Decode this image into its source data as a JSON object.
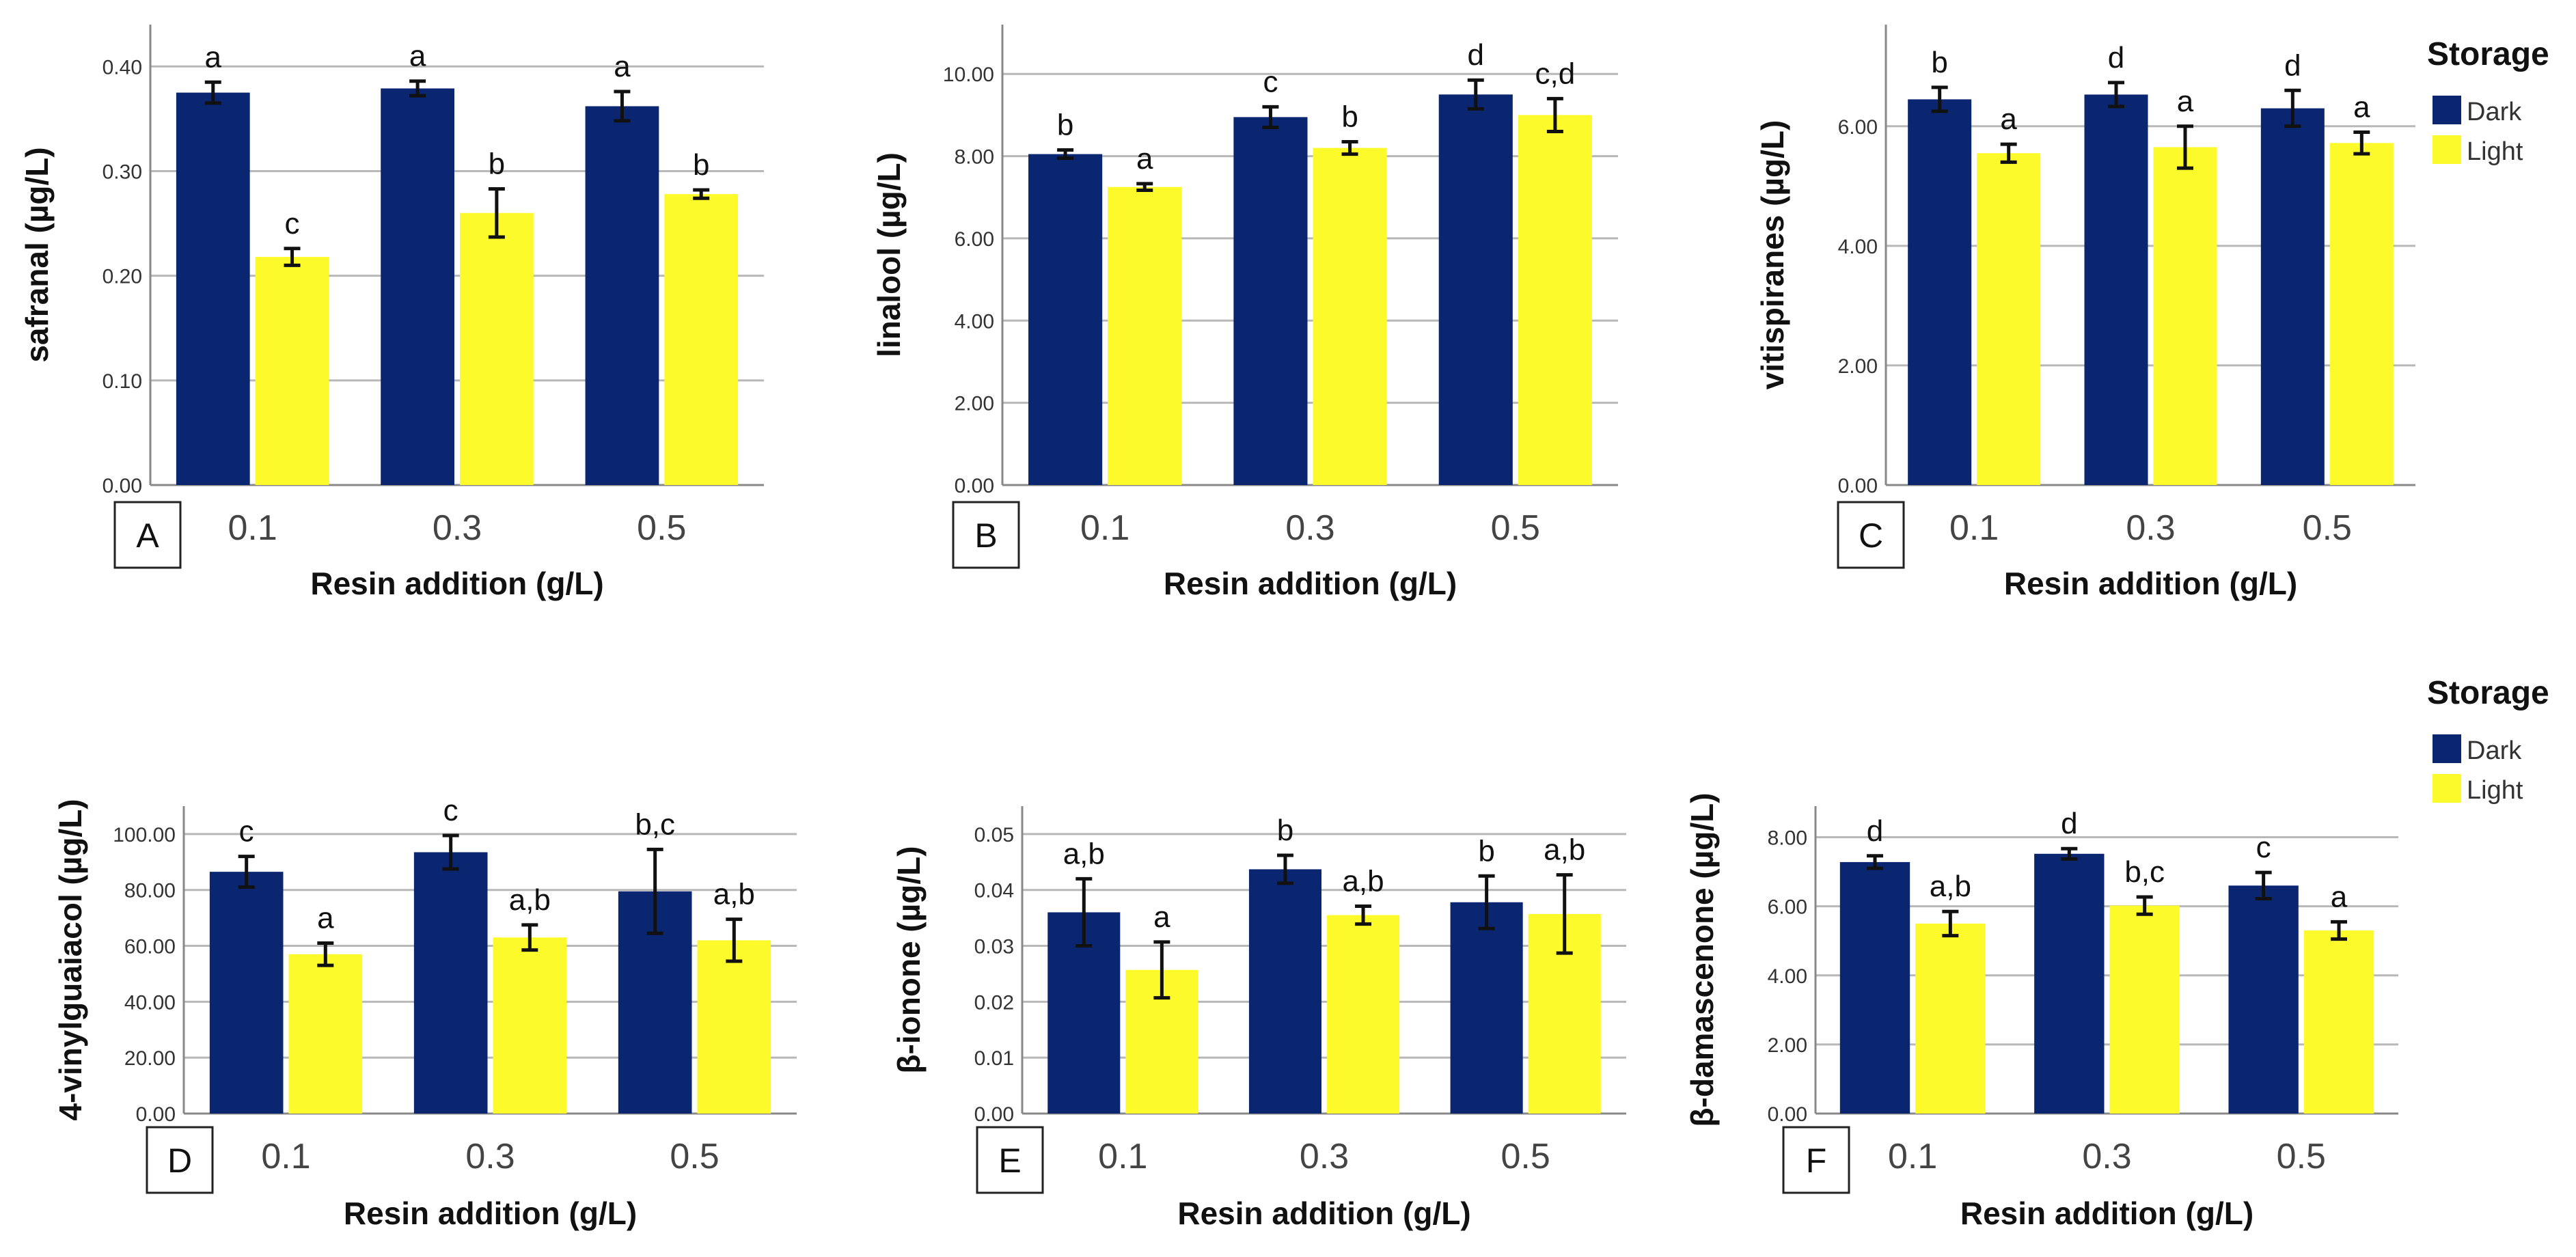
{
  "colors": {
    "dark": "#0b2670",
    "light": "#fdfa2c",
    "grid": "#b8b8b8",
    "axis": "#888888"
  },
  "chart_data": [
    {
      "panel": "A",
      "type": "bar",
      "ylabel": "safranal (µg/L)",
      "xlabel": "Resin addition (g/L)",
      "categories": [
        "0.1",
        "0.3",
        "0.5"
      ],
      "ylim": [
        0,
        0.44
      ],
      "ticks": [
        0,
        0.1,
        0.2,
        0.3,
        0.4
      ],
      "tick_labels": [
        "0.00",
        "0.10",
        "0.20",
        "0.30",
        "0.40"
      ],
      "series": [
        {
          "name": "Dark",
          "values": [
            0.375,
            0.379,
            0.362
          ],
          "errors": [
            0.01,
            0.007,
            0.014
          ],
          "letters": [
            "a",
            "a",
            "a"
          ]
        },
        {
          "name": "Light",
          "values": [
            0.218,
            0.26,
            0.278
          ],
          "errors": [
            0.008,
            0.023,
            0.004
          ],
          "letters": [
            "c",
            "b",
            "b"
          ]
        }
      ]
    },
    {
      "panel": "B",
      "type": "bar",
      "ylabel": "linalool (µg/L)",
      "xlabel": "Resin addition (g/L)",
      "categories": [
        "0.1",
        "0.3",
        "0.5"
      ],
      "ylim": [
        0,
        11.2
      ],
      "ticks": [
        0,
        2,
        4,
        6,
        8,
        10
      ],
      "tick_labels": [
        "0.00",
        "2.00",
        "4.00",
        "6.00",
        "8.00",
        "10.00"
      ],
      "series": [
        {
          "name": "Dark",
          "values": [
            8.05,
            8.95,
            9.5
          ],
          "errors": [
            0.1,
            0.25,
            0.35
          ],
          "letters": [
            "b",
            "c",
            "d"
          ]
        },
        {
          "name": "Light",
          "values": [
            7.25,
            8.2,
            9.0
          ],
          "errors": [
            0.08,
            0.15,
            0.4
          ],
          "letters": [
            "a",
            "b",
            "c,d"
          ]
        }
      ]
    },
    {
      "panel": "C",
      "type": "bar",
      "ylabel": "vitispiranes (µg/L)",
      "xlabel": "Resin addition (g/L)",
      "categories": [
        "0.1",
        "0.3",
        "0.5"
      ],
      "ylim": [
        0,
        7.7
      ],
      "ticks": [
        0,
        2,
        4,
        6
      ],
      "tick_labels": [
        "0.00",
        "2.00",
        "4.00",
        "6.00"
      ],
      "series": [
        {
          "name": "Dark",
          "values": [
            6.45,
            6.53,
            6.3
          ],
          "errors": [
            0.2,
            0.2,
            0.3
          ],
          "letters": [
            "b",
            "d",
            "d"
          ]
        },
        {
          "name": "Light",
          "values": [
            5.55,
            5.65,
            5.72
          ],
          "errors": [
            0.15,
            0.35,
            0.18
          ],
          "letters": [
            "a",
            "a",
            "a"
          ]
        }
      ]
    },
    {
      "panel": "D",
      "type": "bar",
      "ylabel": "4-vinylguaiacol (µg/L)",
      "xlabel": "Resin addition (g/L)",
      "categories": [
        "0.1",
        "0.3",
        "0.5"
      ],
      "ylim": [
        0,
        110
      ],
      "ticks": [
        0,
        20,
        40,
        60,
        80,
        100
      ],
      "tick_labels": [
        "0.00",
        "20.00",
        "40.00",
        "60.00",
        "80.00",
        "100.00"
      ],
      "series": [
        {
          "name": "Dark",
          "values": [
            86.5,
            93.5,
            79.5
          ],
          "errors": [
            5.5,
            6,
            15
          ],
          "letters": [
            "c",
            "c",
            "b,c"
          ]
        },
        {
          "name": "Light",
          "values": [
            57,
            63,
            62
          ],
          "errors": [
            4,
            4.5,
            7.5
          ],
          "letters": [
            "a",
            "a,b",
            "a,b"
          ]
        }
      ]
    },
    {
      "panel": "E",
      "type": "bar",
      "ylabel": "β-ionone (µg/L)",
      "xlabel": "Resin addition (g/L)",
      "categories": [
        "0.1",
        "0.3",
        "0.5"
      ],
      "ylim": [
        0,
        0.055
      ],
      "ticks": [
        0,
        0.01,
        0.02,
        0.03,
        0.04,
        0.05
      ],
      "tick_labels": [
        "0.00",
        "0.01",
        "0.02",
        "0.03",
        "0.04",
        "0.05"
      ],
      "series": [
        {
          "name": "Dark",
          "values": [
            0.036,
            0.0437,
            0.0378
          ],
          "errors": [
            0.006,
            0.0025,
            0.0047
          ],
          "letters": [
            "a,b",
            "b",
            "b"
          ]
        },
        {
          "name": "Light",
          "values": [
            0.0257,
            0.0355,
            0.0357
          ],
          "errors": [
            0.005,
            0.0016,
            0.007
          ],
          "letters": [
            "a",
            "a,b",
            "a,b"
          ]
        }
      ]
    },
    {
      "panel": "F",
      "type": "bar",
      "ylabel": "β-damascenone (µg/L)",
      "xlabel": "Resin addition (g/L)",
      "categories": [
        "0.1",
        "0.3",
        "0.5"
      ],
      "ylim": [
        0,
        8.9
      ],
      "ticks": [
        0,
        2,
        4,
        6,
        8
      ],
      "tick_labels": [
        "0.00",
        "2.00",
        "4.00",
        "6.00",
        "8.00"
      ],
      "series": [
        {
          "name": "Dark",
          "values": [
            7.28,
            7.52,
            6.6
          ],
          "errors": [
            0.18,
            0.15,
            0.38
          ],
          "letters": [
            "d",
            "d",
            "c"
          ]
        },
        {
          "name": "Light",
          "values": [
            5.5,
            6.02,
            5.3
          ],
          "errors": [
            0.35,
            0.25,
            0.25
          ],
          "letters": [
            "a,b",
            "b,c",
            "a"
          ]
        }
      ]
    }
  ],
  "legends": [
    {
      "title": "Storage",
      "items": [
        "Dark",
        "Light"
      ]
    },
    {
      "title": "Storage",
      "items": [
        "Dark",
        "Light"
      ]
    }
  ]
}
